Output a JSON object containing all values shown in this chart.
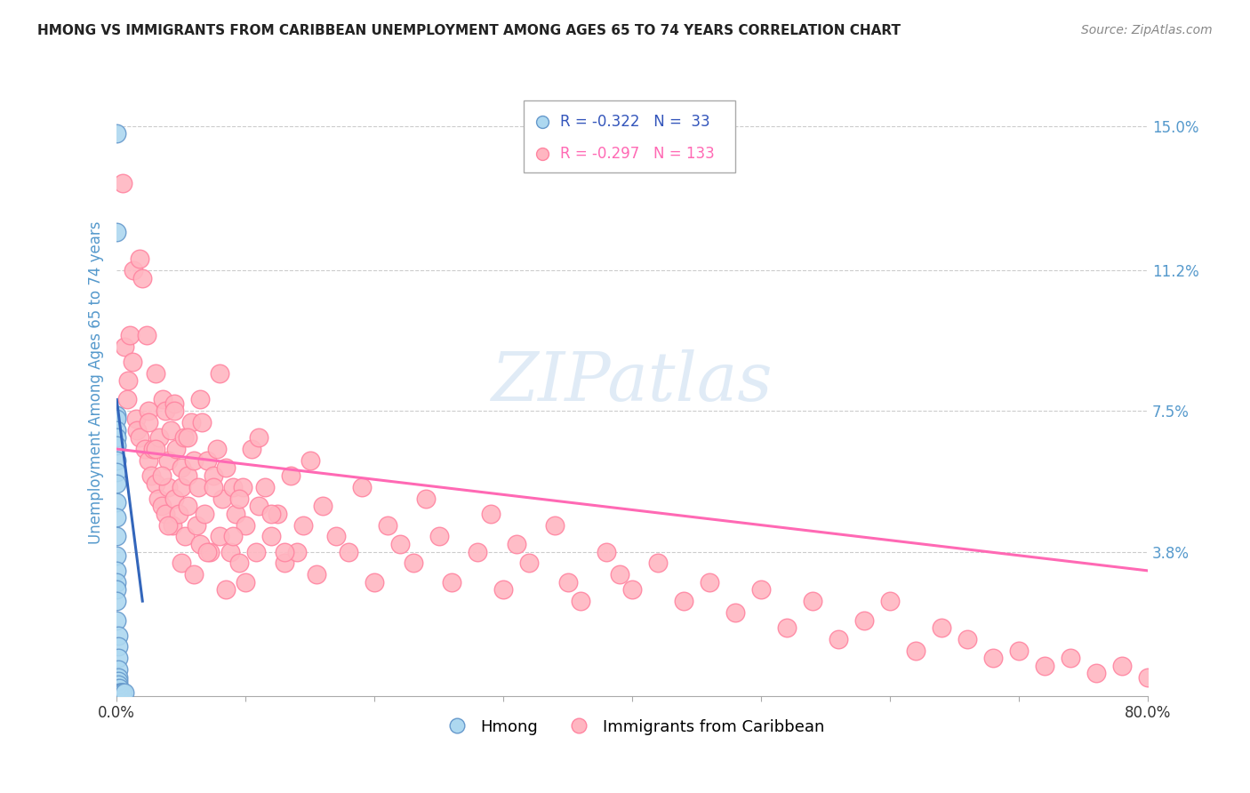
{
  "title": "HMONG VS IMMIGRANTS FROM CARIBBEAN UNEMPLOYMENT AMONG AGES 65 TO 74 YEARS CORRELATION CHART",
  "source": "Source: ZipAtlas.com",
  "ylabel": "Unemployment Among Ages 65 to 74 years",
  "xlim": [
    0.0,
    0.8
  ],
  "ylim": [
    0.0,
    0.165
  ],
  "yticks": [
    0.038,
    0.075,
    0.112,
    0.15
  ],
  "ytick_labels": [
    "3.8%",
    "7.5%",
    "11.2%",
    "15.0%"
  ],
  "xtick_positions": [
    0.0,
    0.1,
    0.2,
    0.3,
    0.4,
    0.5,
    0.6,
    0.7,
    0.8
  ],
  "xtick_labels": [
    "0.0%",
    "",
    "",
    "",
    "",
    "",
    "",
    "",
    "80.0%"
  ],
  "legend_r1": "-0.322",
  "legend_n1": "33",
  "legend_r2": "-0.297",
  "legend_n2": "133",
  "hmong_color": "#ADD8F0",
  "caribbean_color": "#FFB6C1",
  "hmong_edge_color": "#6699CC",
  "caribbean_edge_color": "#FF85A1",
  "regression_hmong_color": "#3366BB",
  "regression_caribbean_color": "#FF69B4",
  "watermark": "ZIPatlas",
  "background_color": "#FFFFFF",
  "tick_color": "#5599CC",
  "hmong_regression_x0": 0.0,
  "hmong_regression_y0": 0.078,
  "hmong_regression_x1": 0.02,
  "hmong_regression_y1": 0.025,
  "caribbean_regression_x0": 0.0,
  "caribbean_regression_y0": 0.065,
  "caribbean_regression_x1": 0.8,
  "caribbean_regression_y1": 0.033,
  "hmong_x": [
    0.0,
    0.0,
    0.0,
    0.0,
    0.0,
    0.0,
    0.0,
    0.0,
    0.0,
    0.0,
    0.0,
    0.0,
    0.0,
    0.0,
    0.0,
    0.0,
    0.0,
    0.0,
    0.0,
    0.001,
    0.001,
    0.001,
    0.001,
    0.001,
    0.001,
    0.001,
    0.002,
    0.002,
    0.003,
    0.003,
    0.004,
    0.005,
    0.006
  ],
  "hmong_y": [
    0.148,
    0.122,
    0.074,
    0.073,
    0.07,
    0.068,
    0.066,
    0.062,
    0.059,
    0.056,
    0.051,
    0.047,
    0.042,
    0.037,
    0.033,
    0.03,
    0.028,
    0.025,
    0.02,
    0.016,
    0.013,
    0.01,
    0.007,
    0.005,
    0.004,
    0.003,
    0.002,
    0.001,
    0.001,
    0.001,
    0.001,
    0.001,
    0.001
  ],
  "caribbean_x": [
    0.005,
    0.006,
    0.008,
    0.009,
    0.01,
    0.012,
    0.013,
    0.015,
    0.016,
    0.018,
    0.018,
    0.02,
    0.022,
    0.023,
    0.025,
    0.025,
    0.027,
    0.028,
    0.03,
    0.03,
    0.032,
    0.033,
    0.035,
    0.036,
    0.038,
    0.038,
    0.04,
    0.04,
    0.042,
    0.043,
    0.045,
    0.045,
    0.046,
    0.048,
    0.05,
    0.05,
    0.052,
    0.053,
    0.055,
    0.055,
    0.058,
    0.06,
    0.062,
    0.063,
    0.065,
    0.066,
    0.068,
    0.07,
    0.072,
    0.075,
    0.078,
    0.08,
    0.082,
    0.085,
    0.088,
    0.09,
    0.092,
    0.095,
    0.098,
    0.1,
    0.105,
    0.108,
    0.11,
    0.115,
    0.12,
    0.125,
    0.13,
    0.135,
    0.14,
    0.145,
    0.15,
    0.155,
    0.16,
    0.17,
    0.18,
    0.19,
    0.2,
    0.21,
    0.22,
    0.23,
    0.24,
    0.25,
    0.26,
    0.28,
    0.29,
    0.3,
    0.31,
    0.32,
    0.34,
    0.35,
    0.36,
    0.38,
    0.39,
    0.4,
    0.42,
    0.44,
    0.46,
    0.48,
    0.5,
    0.52,
    0.54,
    0.56,
    0.58,
    0.6,
    0.62,
    0.64,
    0.66,
    0.68,
    0.7,
    0.72,
    0.74,
    0.76,
    0.78,
    0.8,
    0.025,
    0.03,
    0.035,
    0.04,
    0.045,
    0.05,
    0.055,
    0.06,
    0.065,
    0.07,
    0.075,
    0.08,
    0.085,
    0.09,
    0.095,
    0.1,
    0.11,
    0.12,
    0.13
  ],
  "caribbean_y": [
    0.135,
    0.092,
    0.078,
    0.083,
    0.095,
    0.088,
    0.112,
    0.073,
    0.07,
    0.068,
    0.115,
    0.11,
    0.065,
    0.095,
    0.062,
    0.075,
    0.058,
    0.065,
    0.056,
    0.085,
    0.052,
    0.068,
    0.05,
    0.078,
    0.048,
    0.075,
    0.062,
    0.055,
    0.07,
    0.045,
    0.077,
    0.052,
    0.065,
    0.048,
    0.06,
    0.055,
    0.068,
    0.042,
    0.058,
    0.05,
    0.072,
    0.062,
    0.045,
    0.055,
    0.04,
    0.072,
    0.048,
    0.062,
    0.038,
    0.058,
    0.065,
    0.042,
    0.052,
    0.06,
    0.038,
    0.055,
    0.048,
    0.035,
    0.055,
    0.045,
    0.065,
    0.038,
    0.05,
    0.055,
    0.042,
    0.048,
    0.035,
    0.058,
    0.038,
    0.045,
    0.062,
    0.032,
    0.05,
    0.042,
    0.038,
    0.055,
    0.03,
    0.045,
    0.04,
    0.035,
    0.052,
    0.042,
    0.03,
    0.038,
    0.048,
    0.028,
    0.04,
    0.035,
    0.045,
    0.03,
    0.025,
    0.038,
    0.032,
    0.028,
    0.035,
    0.025,
    0.03,
    0.022,
    0.028,
    0.018,
    0.025,
    0.015,
    0.02,
    0.025,
    0.012,
    0.018,
    0.015,
    0.01,
    0.012,
    0.008,
    0.01,
    0.006,
    0.008,
    0.005,
    0.072,
    0.065,
    0.058,
    0.045,
    0.075,
    0.035,
    0.068,
    0.032,
    0.078,
    0.038,
    0.055,
    0.085,
    0.028,
    0.042,
    0.052,
    0.03,
    0.068,
    0.048,
    0.038
  ]
}
